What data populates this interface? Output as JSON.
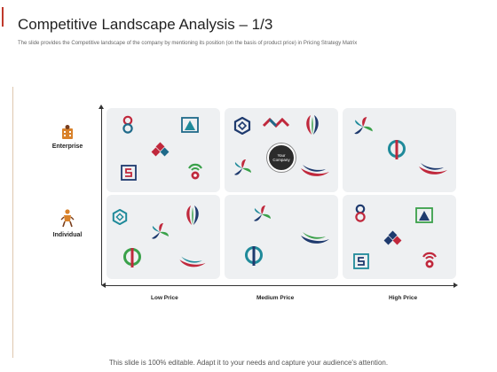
{
  "slide": {
    "title": "Competitive Landscape Analysis – 1/3",
    "subtitle": "The slide provides the Competitive landscape of the company by mentioning its position (on the basis of product price) in Pricing Strategy Matrix",
    "footer": "This slide is 100% editable. Adapt it to your needs and capture your audience's attention."
  },
  "matrix": {
    "rows": [
      {
        "label": "Enterprise",
        "icon": "building-person-icon"
      },
      {
        "label": "Individual",
        "icon": "person-icon"
      }
    ],
    "columns": [
      "Low Price",
      "Medium Price",
      "High Price"
    ],
    "company_label": "Your Company"
  },
  "colors": {
    "accent": "#c0392b",
    "teal": "#1f8a9a",
    "crimson": "#c0283c",
    "green": "#3aa14a",
    "navy": "#1e3a6e",
    "cell_bg": "#eef0f2"
  }
}
